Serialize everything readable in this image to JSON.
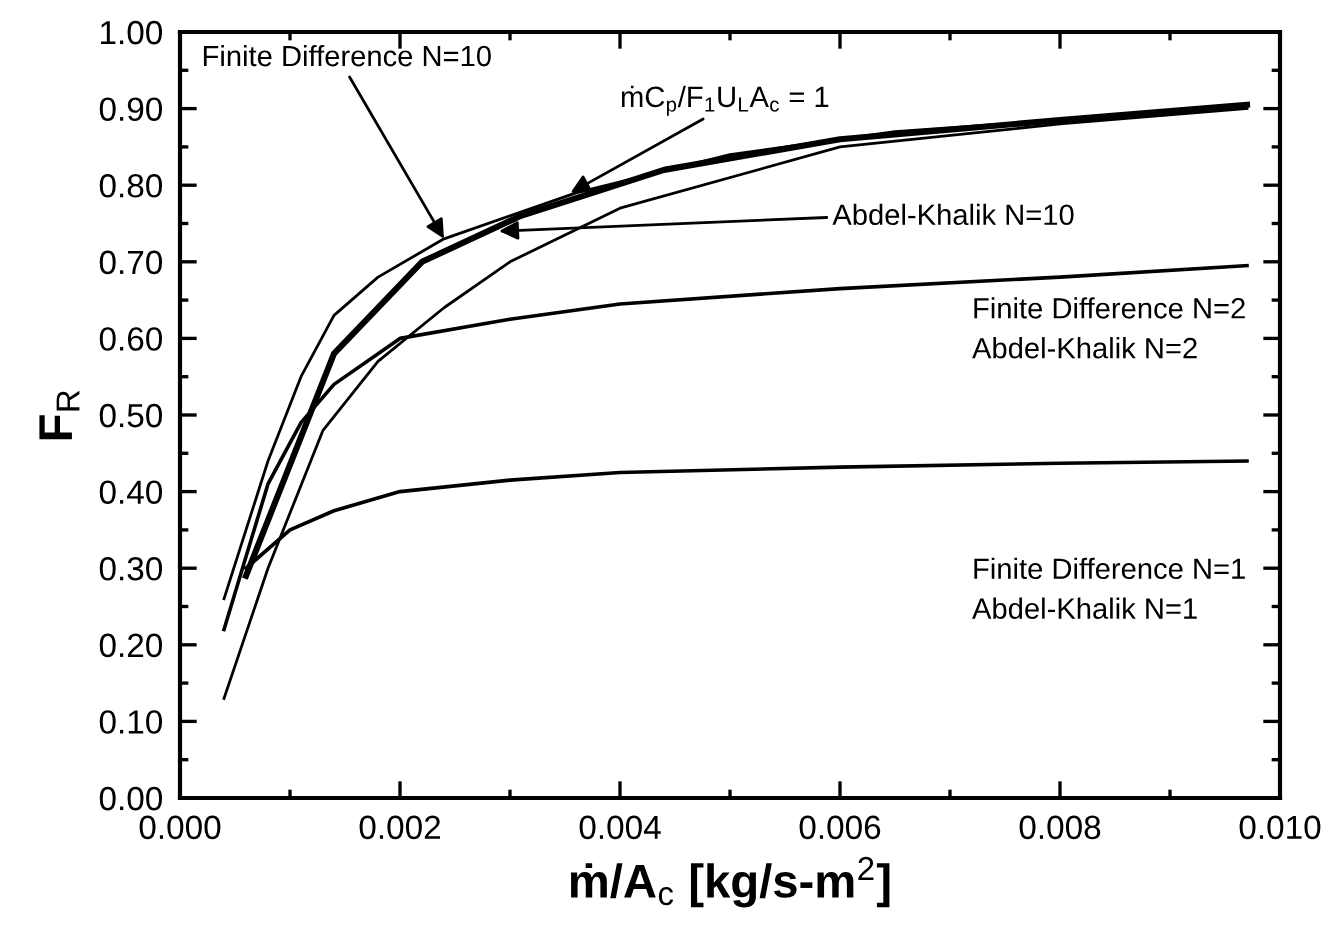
{
  "chart_data": {
    "type": "line",
    "xlabel": "ṁ/A$_{c}$ [kg/s-m$^{2}$]",
    "ylabel": "F$_{R}$",
    "xlim": [
      0,
      0.01
    ],
    "ylim": [
      0,
      1.0
    ],
    "xticks": [
      {
        "value": 0,
        "label": "0.000"
      },
      {
        "value": 0.002,
        "label": "0.002"
      },
      {
        "value": 0.004,
        "label": "0.004"
      },
      {
        "value": 0.006,
        "label": "0.006"
      },
      {
        "value": 0.008,
        "label": "0.008"
      },
      {
        "value": 0.01,
        "label": "0.010"
      }
    ],
    "yticks": [
      {
        "value": 0,
        "label": "0.00"
      },
      {
        "value": 0.1,
        "label": "0.10"
      },
      {
        "value": 0.2,
        "label": "0.20"
      },
      {
        "value": 0.3,
        "label": "0.30"
      },
      {
        "value": 0.4,
        "label": "0.40"
      },
      {
        "value": 0.5,
        "label": "0.50"
      },
      {
        "value": 0.6,
        "label": "0.60"
      },
      {
        "value": 0.7,
        "label": "0.70"
      },
      {
        "value": 0.8,
        "label": "0.80"
      },
      {
        "value": 0.9,
        "label": "0.90"
      },
      {
        "value": 1.0,
        "label": "1.00"
      }
    ],
    "grid": false,
    "legend": false,
    "marker": "none",
    "line_style": "solid",
    "series": [
      {
        "color": "#000000",
        "x": [
          0.0004,
          0.0008,
          0.0011,
          0.0014,
          0.0018,
          0.0024,
          0.003,
          0.0036,
          0.005,
          0.0065,
          0.008,
          0.0097
        ],
        "values": [
          0.26,
          0.44,
          0.55,
          0.63,
          0.68,
          0.73,
          0.76,
          0.79,
          0.84,
          0.87,
          0.885,
          0.905
        ]
      },
      {
        "color": "#000000",
        "x": [
          0.0006,
          0.0014,
          0.0022,
          0.0031,
          0.0044,
          0.006,
          0.008,
          0.0097
        ],
        "values": [
          0.29,
          0.58,
          0.7,
          0.76,
          0.82,
          0.86,
          0.885,
          0.905
        ]
      },
      {
        "color": "#000000",
        "x": [
          0.0004,
          0.0008,
          0.0013,
          0.0018,
          0.0024,
          0.003,
          0.004,
          0.006,
          0.008,
          0.0097
        ],
        "values": [
          0.13,
          0.3,
          0.48,
          0.57,
          0.64,
          0.7,
          0.77,
          0.85,
          0.88,
          0.9
        ]
      },
      {
        "color": "#000000",
        "x": [
          0.0004,
          0.0008,
          0.0011,
          0.0014,
          0.002,
          0.003,
          0.004,
          0.006,
          0.008,
          0.0097
        ],
        "values": [
          0.22,
          0.41,
          0.49,
          0.54,
          0.6,
          0.625,
          0.645,
          0.665,
          0.68,
          0.695
        ]
      },
      {
        "color": "#000000",
        "x": [
          0.0006,
          0.001,
          0.0014,
          0.002,
          0.003,
          0.004,
          0.006,
          0.008,
          0.0097
        ],
        "values": [
          0.3,
          0.35,
          0.375,
          0.4,
          0.415,
          0.425,
          0.432,
          0.437,
          0.44
        ]
      }
    ],
    "annotations": [
      {
        "text": "Finite Difference N=10",
        "x": 0.0024,
        "y": 0.73
      },
      "ṁC$_{p}$/F$_{1}$U$_{L}$A$_{c}$ = 1",
      {
        "text": "Abdel-Khalik N=10",
        "x": 0.0029,
        "y": 0.74
      },
      "Finite Difference N=2\nAbdel-Khalik N=2",
      "Finite Difference N=1\nAbdel-Khalik N=1"
    ]
  }
}
